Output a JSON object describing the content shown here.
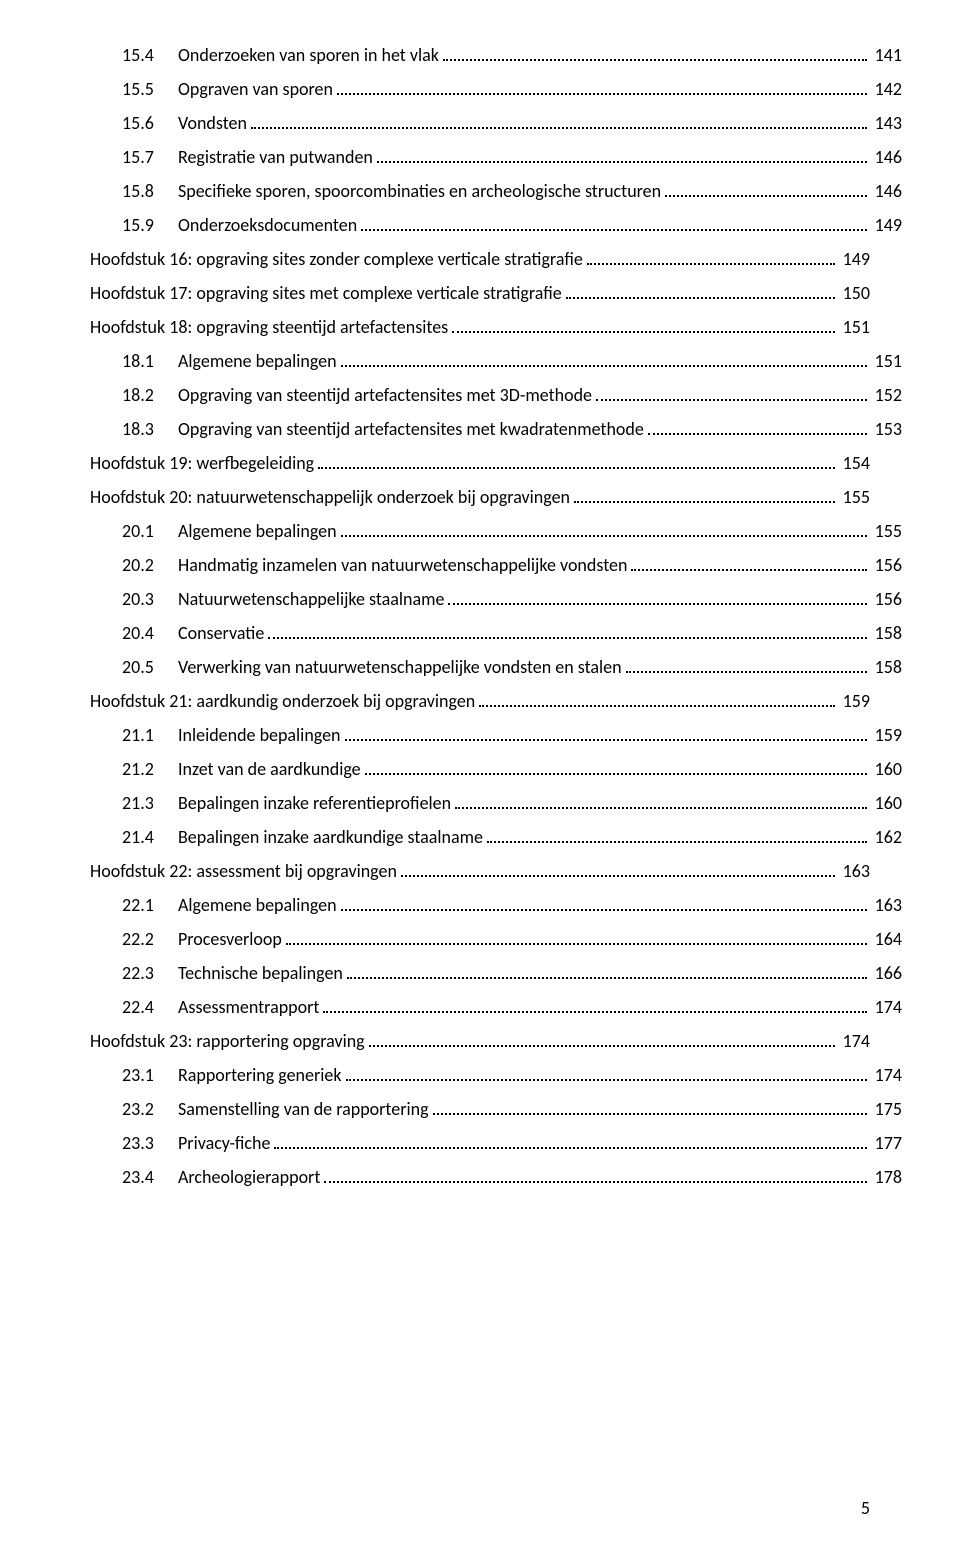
{
  "entries": [
    {
      "kind": "sub",
      "num": "15.4",
      "label": "Onderzoeken van sporen in het vlak",
      "page": "141"
    },
    {
      "kind": "sub",
      "num": "15.5",
      "label": "Opgraven van sporen",
      "page": "142"
    },
    {
      "kind": "sub",
      "num": "15.6",
      "label": "Vondsten",
      "page": "143"
    },
    {
      "kind": "sub",
      "num": "15.7",
      "label": "Registratie van putwanden",
      "page": "146"
    },
    {
      "kind": "sub",
      "num": "15.8",
      "label": "Specifieke sporen, spoorcombinaties en archeologische structuren",
      "page": "146"
    },
    {
      "kind": "sub",
      "num": "15.9",
      "label": "Onderzoeksdocumenten",
      "page": "149"
    },
    {
      "kind": "chap",
      "num": "",
      "label": "Hoofdstuk 16: opgraving sites zonder complexe verticale stratigrafie",
      "page": "149"
    },
    {
      "kind": "chap",
      "num": "",
      "label": "Hoofdstuk 17: opgraving sites met complexe verticale stratigrafie",
      "page": "150"
    },
    {
      "kind": "chap",
      "num": "",
      "label": "Hoofdstuk 18: opgraving steentijd artefactensites",
      "page": "151"
    },
    {
      "kind": "sub",
      "num": "18.1",
      "label": "Algemene bepalingen",
      "page": "151"
    },
    {
      "kind": "sub",
      "num": "18.2",
      "label": "Opgraving van steentijd artefactensites met 3D-methode",
      "page": "152"
    },
    {
      "kind": "sub",
      "num": "18.3",
      "label": "Opgraving van steentijd artefactensites met kwadratenmethode",
      "page": "153"
    },
    {
      "kind": "chap",
      "num": "",
      "label": "Hoofdstuk 19: werfbegeleiding",
      "page": "154"
    },
    {
      "kind": "chap",
      "num": "",
      "label": "Hoofdstuk 20: natuurwetenschappelijk onderzoek bij opgravingen",
      "page": "155"
    },
    {
      "kind": "sub",
      "num": "20.1",
      "label": "Algemene bepalingen",
      "page": "155"
    },
    {
      "kind": "sub",
      "num": "20.2",
      "label": "Handmatig inzamelen van natuurwetenschappelijke vondsten",
      "page": "156"
    },
    {
      "kind": "sub",
      "num": "20.3",
      "label": "Natuurwetenschappelijke staalname",
      "page": "156"
    },
    {
      "kind": "sub",
      "num": "20.4",
      "label": "Conservatie",
      "page": "158"
    },
    {
      "kind": "sub",
      "num": "20.5",
      "label": "Verwerking van natuurwetenschappelijke vondsten en stalen",
      "page": "158"
    },
    {
      "kind": "chap",
      "num": "",
      "label": "Hoofdstuk 21: aardkundig onderzoek bij opgravingen",
      "page": "159"
    },
    {
      "kind": "sub",
      "num": "21.1",
      "label": "Inleidende bepalingen",
      "page": "159"
    },
    {
      "kind": "sub",
      "num": "21.2",
      "label": "Inzet van de aardkundige",
      "page": "160"
    },
    {
      "kind": "sub",
      "num": "21.3",
      "label": "Bepalingen inzake referentieprofielen",
      "page": "160"
    },
    {
      "kind": "sub",
      "num": "21.4",
      "label": "Bepalingen inzake aardkundige staalname",
      "page": "162"
    },
    {
      "kind": "chap",
      "num": "",
      "label": "Hoofdstuk 22: assessment bij opgravingen",
      "page": "163"
    },
    {
      "kind": "sub",
      "num": "22.1",
      "label": "Algemene bepalingen",
      "page": "163"
    },
    {
      "kind": "sub",
      "num": "22.2",
      "label": "Procesverloop",
      "page": "164"
    },
    {
      "kind": "sub",
      "num": "22.3",
      "label": "Technische bepalingen",
      "page": "166"
    },
    {
      "kind": "sub",
      "num": "22.4",
      "label": "Assessmentrapport",
      "page": "174"
    },
    {
      "kind": "chap",
      "num": "",
      "label": "Hoofdstuk 23: rapportering opgraving",
      "page": "174"
    },
    {
      "kind": "sub",
      "num": "23.1",
      "label": "Rapportering generiek",
      "page": "174"
    },
    {
      "kind": "sub",
      "num": "23.2",
      "label": "Samenstelling van de rapportering",
      "page": "175"
    },
    {
      "kind": "sub",
      "num": "23.3",
      "label": "Privacy-fiche",
      "page": "177"
    },
    {
      "kind": "sub",
      "num": "23.4",
      "label": "Archeologierapport",
      "page": "178"
    }
  ],
  "footerPageNumber": "5",
  "style": {
    "fontFamily": "Calibri, 'Segoe UI', Arial, sans-serif",
    "fontSizePt": 18,
    "textColor": "#000000",
    "backgroundColor": "#ffffff",
    "dotLeaderColor": "#000000",
    "pageWidthPx": 960,
    "pageHeightPx": 1561,
    "subIndentPx": 32,
    "numColWidthPx": 56
  }
}
